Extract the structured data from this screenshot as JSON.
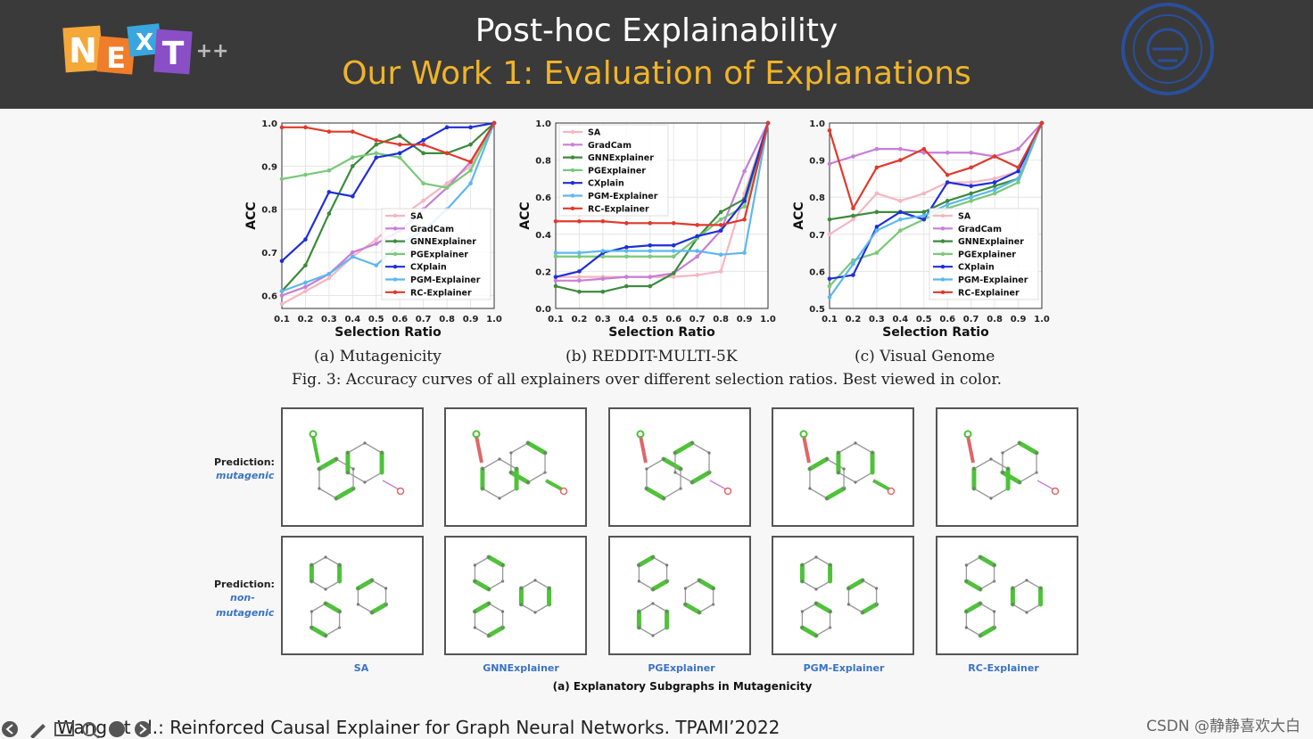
{
  "header": {
    "title": "Post-hoc Explainability",
    "subtitle": "Our Work 1: Evaluation of Explanations",
    "logo_letters": [
      "N",
      "E",
      "X",
      "T"
    ],
    "logo_suffix": "++",
    "colors": {
      "bg": "#3a3a3a",
      "title": "#ffffff",
      "subtitle": "#f0b429"
    }
  },
  "legend": [
    "SA",
    "GradCam",
    "GNNExplainer",
    "PGExplainer",
    "CXplain",
    "PGM-Explainer",
    "RC-Explainer"
  ],
  "series_colors": [
    "#f4b6c2",
    "#c77fd6",
    "#3c8a3c",
    "#79c979",
    "#1f2fd6",
    "#5db8ee",
    "#e0392b"
  ],
  "chart_data": [
    {
      "type": "line",
      "caption": "(a) Mutagenicity",
      "xlabel": "Selection Ratio",
      "ylabel": "ACC",
      "x": [
        0.1,
        0.2,
        0.3,
        0.4,
        0.5,
        0.6,
        0.7,
        0.8,
        0.9,
        1.0
      ],
      "xticks": [
        "0.1",
        "0.2",
        "0.3",
        "0.4",
        "0.5",
        "0.6",
        "0.7",
        "0.8",
        "0.9",
        "1.0"
      ],
      "ylim": [
        0.57,
        1.0
      ],
      "yticks": [
        0.6,
        0.7,
        0.8,
        0.9,
        1.0
      ],
      "yticklabels": [
        "0.6",
        "0.7",
        "0.8",
        "0.9",
        "1.0"
      ],
      "legend_position": "lower-right",
      "series": [
        {
          "name": "SA",
          "values": [
            0.58,
            0.61,
            0.64,
            0.69,
            0.73,
            0.78,
            0.82,
            0.86,
            0.9,
            1.0
          ]
        },
        {
          "name": "GradCam",
          "values": [
            0.6,
            0.62,
            0.65,
            0.7,
            0.72,
            0.75,
            0.8,
            0.85,
            0.91,
            1.0
          ]
        },
        {
          "name": "GNNExplainer",
          "values": [
            0.61,
            0.67,
            0.79,
            0.9,
            0.95,
            0.97,
            0.93,
            0.93,
            0.95,
            1.0
          ]
        },
        {
          "name": "PGExplainer",
          "values": [
            0.87,
            0.88,
            0.89,
            0.92,
            0.93,
            0.92,
            0.86,
            0.85,
            0.89,
            1.0
          ]
        },
        {
          "name": "CXplain",
          "values": [
            0.68,
            0.73,
            0.84,
            0.83,
            0.92,
            0.93,
            0.96,
            0.99,
            0.99,
            1.0
          ]
        },
        {
          "name": "PGM-Explainer",
          "values": [
            0.61,
            0.63,
            0.65,
            0.69,
            0.67,
            0.72,
            0.75,
            0.8,
            0.86,
            1.0
          ]
        },
        {
          "name": "RC-Explainer",
          "values": [
            0.99,
            0.99,
            0.98,
            0.98,
            0.96,
            0.95,
            0.95,
            0.93,
            0.91,
            1.0
          ]
        }
      ]
    },
    {
      "type": "line",
      "caption": "(b) REDDIT-MULTI-5K",
      "xlabel": "Selection Ratio",
      "ylabel": "ACC",
      "x": [
        0.1,
        0.2,
        0.3,
        0.4,
        0.5,
        0.6,
        0.7,
        0.8,
        0.9,
        1.0
      ],
      "xticks": [
        "0.1",
        "0.2",
        "0.3",
        "0.4",
        "0.5",
        "0.6",
        "0.7",
        "0.8",
        "0.9",
        "1.0"
      ],
      "ylim": [
        0.0,
        1.0
      ],
      "yticks": [
        0.0,
        0.2,
        0.4,
        0.6,
        0.8,
        1.0
      ],
      "yticklabels": [
        "0.0",
        "0.2",
        "0.4",
        "0.6",
        "0.8",
        "1.0"
      ],
      "legend_position": "upper-left",
      "series": [
        {
          "name": "SA",
          "values": [
            0.17,
            0.17,
            0.17,
            0.17,
            0.17,
            0.17,
            0.18,
            0.2,
            0.62,
            1.0
          ]
        },
        {
          "name": "GradCam",
          "values": [
            0.15,
            0.15,
            0.16,
            0.17,
            0.17,
            0.19,
            0.28,
            0.42,
            0.74,
            1.0
          ]
        },
        {
          "name": "GNNExplainer",
          "values": [
            0.12,
            0.09,
            0.09,
            0.12,
            0.12,
            0.19,
            0.38,
            0.52,
            0.59,
            1.0
          ]
        },
        {
          "name": "PGExplainer",
          "values": [
            0.28,
            0.28,
            0.28,
            0.28,
            0.28,
            0.28,
            0.38,
            0.48,
            0.55,
            1.0
          ]
        },
        {
          "name": "CXplain",
          "values": [
            0.17,
            0.2,
            0.3,
            0.33,
            0.34,
            0.34,
            0.39,
            0.42,
            0.58,
            1.0
          ]
        },
        {
          "name": "PGM-Explainer",
          "values": [
            0.3,
            0.3,
            0.31,
            0.31,
            0.31,
            0.31,
            0.31,
            0.29,
            0.3,
            1.0
          ]
        },
        {
          "name": "RC-Explainer",
          "values": [
            0.47,
            0.47,
            0.47,
            0.46,
            0.46,
            0.46,
            0.45,
            0.45,
            0.48,
            1.0
          ]
        }
      ]
    },
    {
      "type": "line",
      "caption": "(c) Visual Genome",
      "xlabel": "Selection Ratio",
      "ylabel": "ACC",
      "x": [
        0.1,
        0.2,
        0.3,
        0.4,
        0.5,
        0.6,
        0.7,
        0.8,
        0.9,
        1.0
      ],
      "xticks": [
        "0.1",
        "0.2",
        "0.3",
        "0.4",
        "0.5",
        "0.6",
        "0.7",
        "0.8",
        "0.9",
        "1.0"
      ],
      "ylim": [
        0.5,
        1.0
      ],
      "yticks": [
        0.5,
        0.6,
        0.7,
        0.8,
        0.9,
        1.0
      ],
      "yticklabels": [
        "0.5",
        "0.6",
        "0.7",
        "0.8",
        "0.9",
        "1.0"
      ],
      "legend_position": "lower-right",
      "series": [
        {
          "name": "SA",
          "values": [
            0.7,
            0.74,
            0.81,
            0.79,
            0.81,
            0.84,
            0.84,
            0.85,
            0.87,
            1.0
          ]
        },
        {
          "name": "GradCam",
          "values": [
            0.89,
            0.91,
            0.93,
            0.93,
            0.92,
            0.92,
            0.92,
            0.91,
            0.93,
            1.0
          ]
        },
        {
          "name": "GNNExplainer",
          "values": [
            0.74,
            0.75,
            0.76,
            0.76,
            0.76,
            0.79,
            0.81,
            0.83,
            0.85,
            1.0
          ]
        },
        {
          "name": "PGExplainer",
          "values": [
            0.56,
            0.63,
            0.65,
            0.71,
            0.74,
            0.77,
            0.79,
            0.81,
            0.84,
            1.0
          ]
        },
        {
          "name": "CXplain",
          "values": [
            0.58,
            0.59,
            0.72,
            0.76,
            0.74,
            0.84,
            0.83,
            0.84,
            0.87,
            1.0
          ]
        },
        {
          "name": "PGM-Explainer",
          "values": [
            0.53,
            0.62,
            0.71,
            0.74,
            0.75,
            0.78,
            0.8,
            0.82,
            0.85,
            1.0
          ]
        },
        {
          "name": "RC-Explainer",
          "values": [
            0.98,
            0.77,
            0.88,
            0.9,
            0.93,
            0.86,
            0.88,
            0.91,
            0.88,
            1.0
          ]
        }
      ]
    }
  ],
  "figure_caption": "Fig. 3: Accuracy curves of all explainers over different selection ratios. Best viewed in color.",
  "mutag": {
    "row1_label": "Prediction:",
    "row1_value": "mutagenic",
    "row2_label": "Prediction:",
    "row2_value_1": "non-",
    "row2_value_2": "mutagenic",
    "methods": [
      "SA",
      "GNNExplainer",
      "PGExplainer",
      "PGM-Explainer",
      "RC-Explainer"
    ],
    "caption": "(a) Explanatory Subgraphs in Mutagenicity"
  },
  "footer": {
    "citation": "Wang et al.: Reinforced Causal Explainer for Graph Neural Networks. TPAMI’2022",
    "watermark": "CSDN @静静喜欢大白"
  }
}
